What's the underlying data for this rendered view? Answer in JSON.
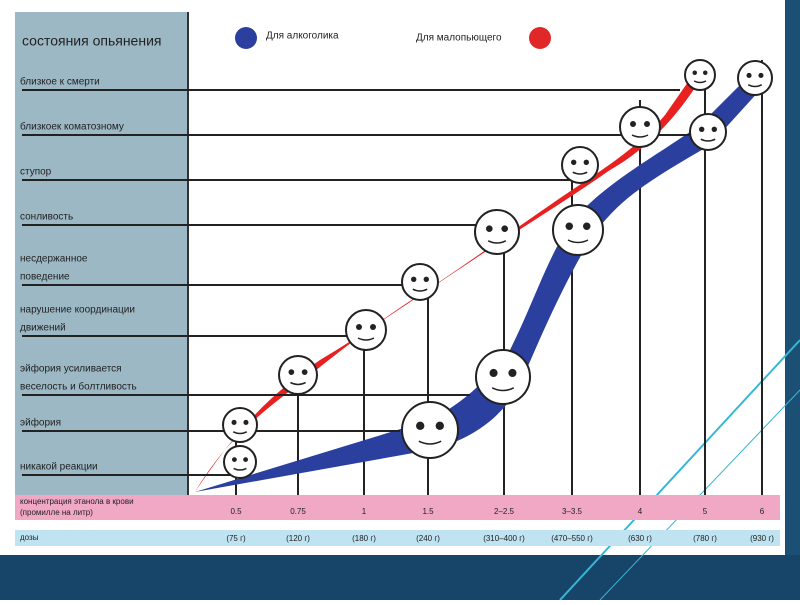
{
  "header": {
    "title": "состояния опьянения"
  },
  "legend": {
    "alcoholic": "Для алкоголика",
    "light_drinker": "Для малопьющего"
  },
  "states": [
    [
      "близкое к смерти"
    ],
    [
      "близкоек коматозному"
    ],
    [
      "ступор"
    ],
    [
      "сонливость"
    ],
    [
      "несдержанное",
      "поведение"
    ],
    [
      "нарушение координации",
      "движений"
    ],
    [
      "эйфория усиливается",
      "веселость и болтливость"
    ],
    [
      "эйфория"
    ],
    [
      "никакой реакции"
    ]
  ],
  "concentration": {
    "label": [
      "концентрация этанола в крови",
      "(промилле на литр)"
    ],
    "values": [
      "0.5",
      "0.75",
      "1",
      "1.5",
      "2–2.5",
      "3–3.5",
      "4",
      "5",
      "6"
    ]
  },
  "doses": {
    "label": "дозы",
    "values": [
      "(75 г)",
      "(120 г)",
      "(180 г)",
      "(240 г)",
      "(310–400 г)",
      "(470–550 г)",
      "(630 г)",
      "(780 г)",
      "(930 г)"
    ]
  }
}
